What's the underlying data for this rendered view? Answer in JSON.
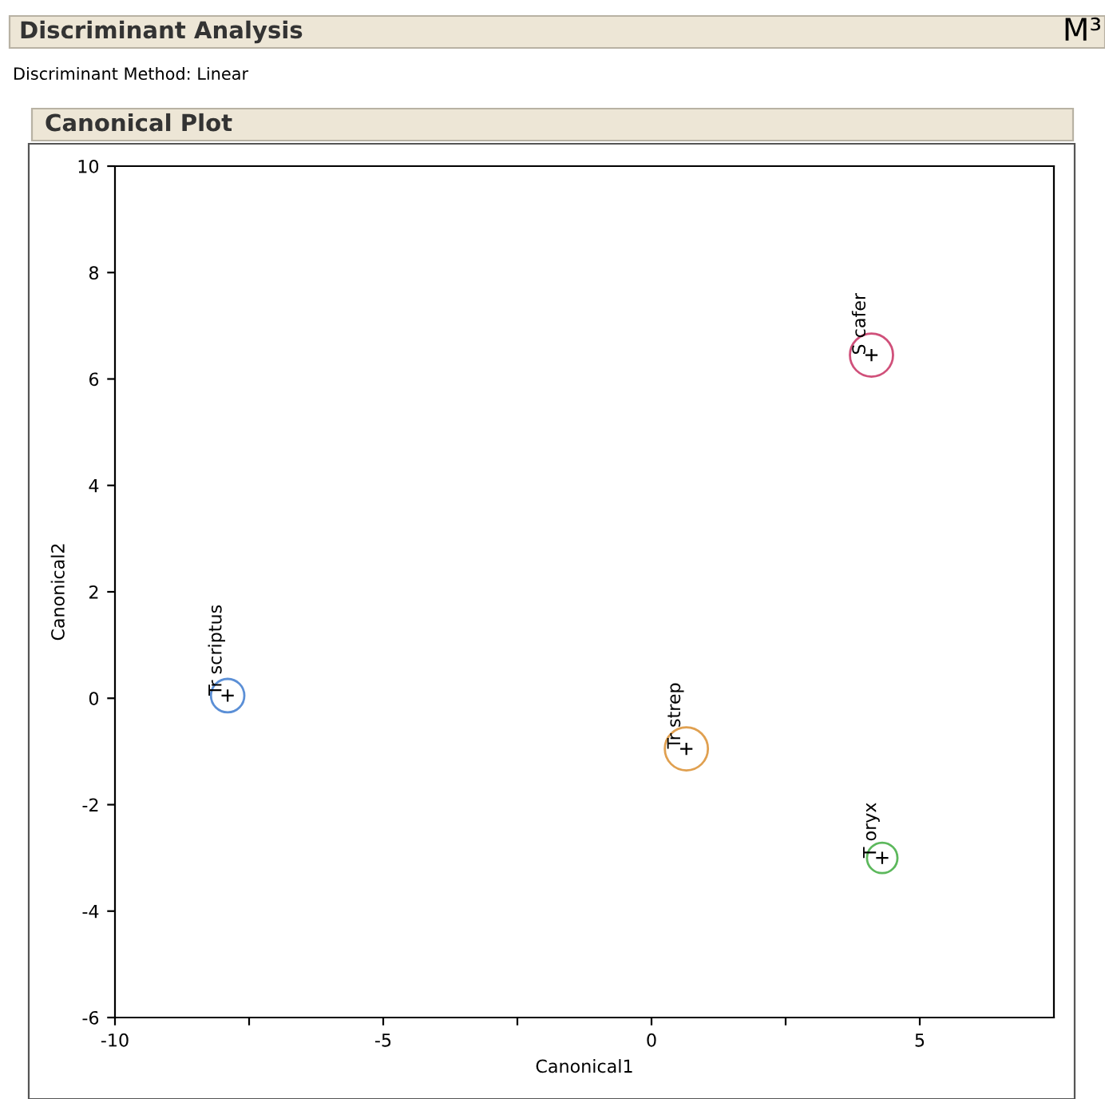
{
  "chart_data": {
    "type": "bubble",
    "title": "Discriminant Analysis",
    "subtitle": "Discriminant Method: Linear",
    "annotations": [
      "Canonical Plot",
      "M³"
    ],
    "xlabel": "Canonical1",
    "ylabel": "Canonical2",
    "xlim": [
      -10,
      7.5
    ],
    "ylim": [
      -6,
      10
    ],
    "xticks": [
      -10,
      {
        "value": -7.5,
        "label": null
      },
      -5,
      {
        "value": -2.5,
        "label": null
      },
      0,
      {
        "value": 2.5,
        "label": null
      },
      5
    ],
    "yticks": [
      -6,
      -4,
      -2,
      0,
      2,
      4,
      6,
      8,
      10
    ],
    "grid": false,
    "series": [
      {
        "name": "Tr scriptus",
        "color": "#5b8fd6",
        "x": [
          -7.9
        ],
        "values": [
          0.05
        ],
        "sizes": [
          0.6
        ]
      },
      {
        "name": "Tr strep",
        "color": "#e0a050",
        "x": [
          0.65
        ],
        "values": [
          -0.95
        ],
        "sizes": [
          1
        ]
      },
      {
        "name": "S cafer",
        "color": "#d0507a",
        "x": [
          4.1
        ],
        "values": [
          6.45
        ],
        "sizes": [
          1
        ]
      },
      {
        "name": "T oryx",
        "color": "#5cb85c",
        "x": [
          4.3
        ],
        "values": [
          -3.0
        ],
        "sizes": [
          0.5
        ]
      }
    ]
  }
}
